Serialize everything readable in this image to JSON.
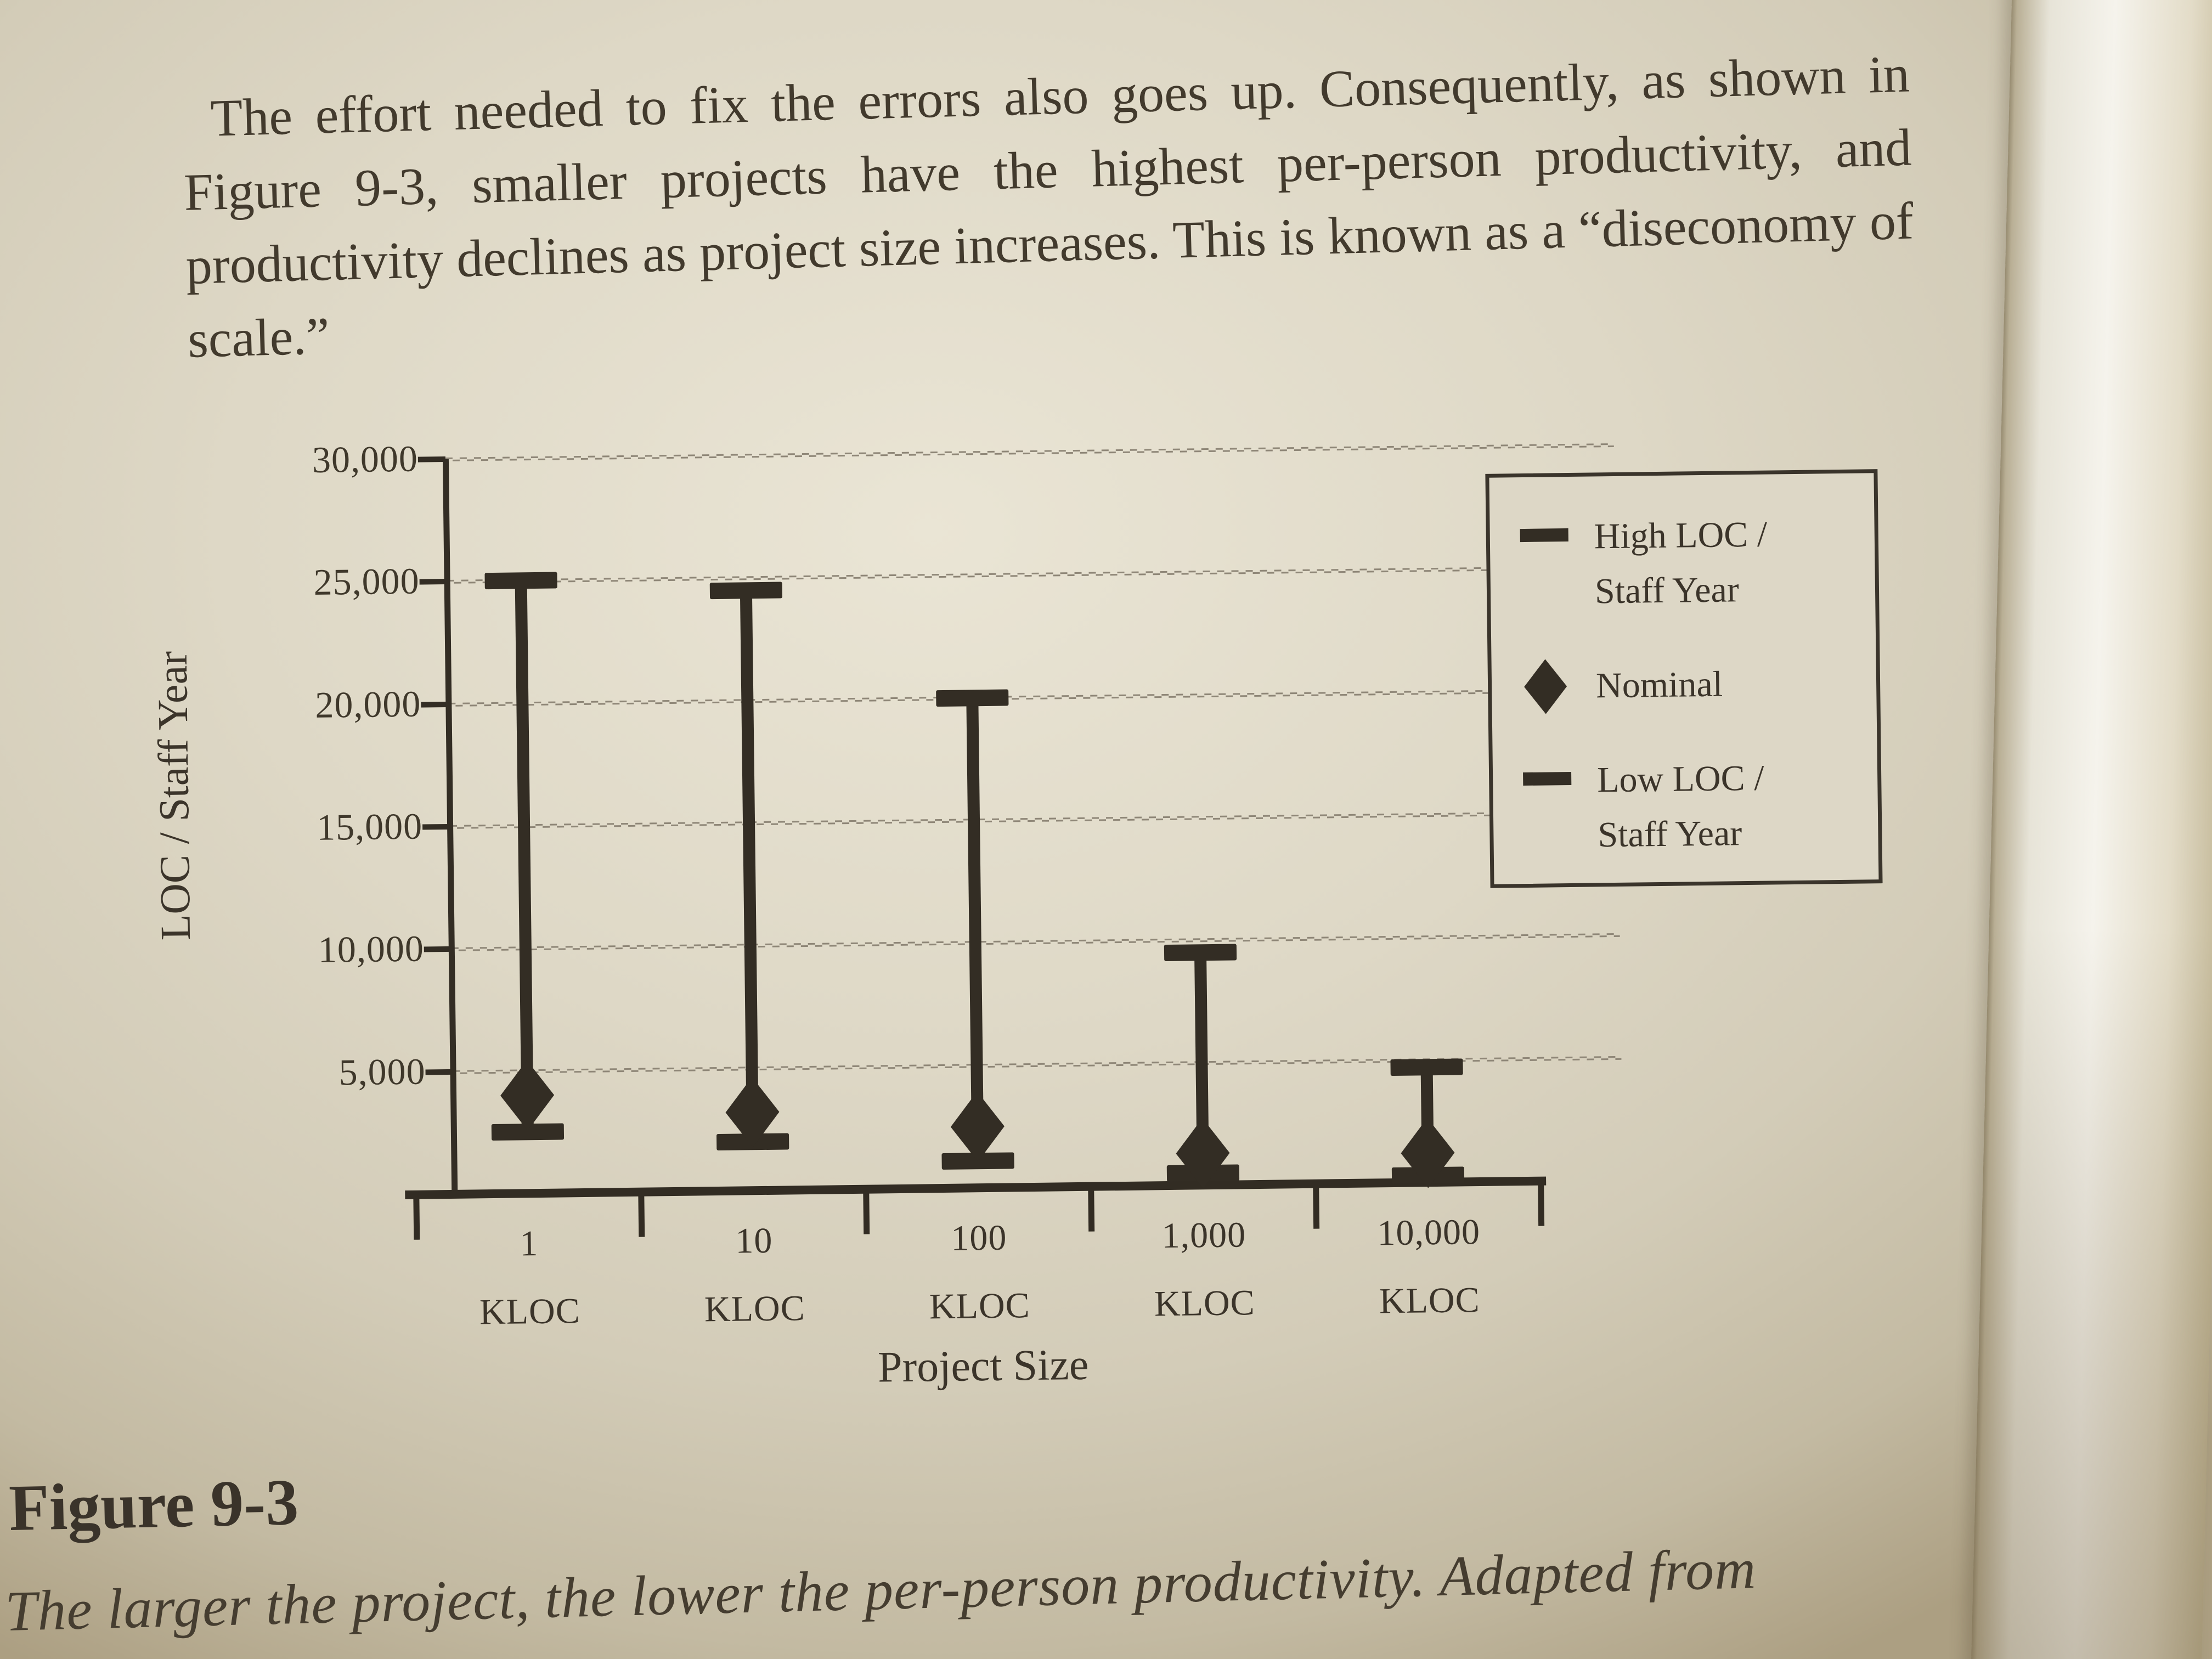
{
  "page": {
    "paragraph": "The effort needed to fix the errors also goes up. Consequently, as shown in Figure 9-3, smaller projects have the highest per-person productivity, and productivity declines as project size increases. This is known as a “diseconomy of scale.”",
    "figure_label": "Figure 9-3",
    "caption": "The larger the project, the lower the per-person productivity. Adapted from"
  },
  "colors": {
    "page_background": "#ddd7c6",
    "ink": "#3e372c",
    "chart_ink": "#332d24",
    "gridline": "#8e8677"
  },
  "chart_data": {
    "type": "range-bar",
    "title": "",
    "xlabel": "Project Size",
    "ylabel": "LOC / Staff Year",
    "categories": [
      "1",
      "10",
      "100",
      "1,000",
      "10,000"
    ],
    "category_unit": "KLOC",
    "ylim": [
      0,
      30000
    ],
    "ytick_step": 5000,
    "ytick_labels": [
      "30,000",
      "25,000",
      "20,000",
      "15,000",
      "10,000",
      "5,000",
      "–"
    ],
    "grid": "wavy horizontal lines at each 5,000; x ticks at category boundaries",
    "series": [
      {
        "name": "High LOC / Staff Year",
        "marker": "dash",
        "values": [
          25000,
          24500,
          20000,
          9500,
          4700
        ]
      },
      {
        "name": "Nominal",
        "marker": "diamond",
        "values": [
          4000,
          3200,
          2500,
          1300,
          1200
        ]
      },
      {
        "name": "Low LOC / Staff Year",
        "marker": "dash",
        "values": [
          2500,
          2000,
          1100,
          500,
          300
        ]
      }
    ],
    "legend": {
      "position": "upper right",
      "items": [
        {
          "symbol": "dash",
          "label": "High LOC /\nStaff Year"
        },
        {
          "symbol": "diamond",
          "label": "Nominal"
        },
        {
          "symbol": "dash",
          "label": "Low LOC /\nStaff Year"
        }
      ]
    }
  }
}
